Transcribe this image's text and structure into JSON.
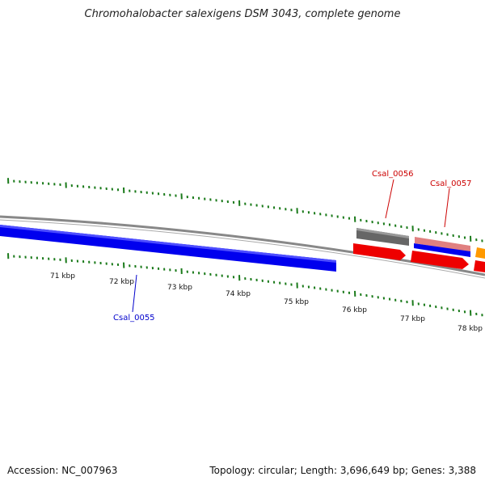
{
  "title": "Chromohalobacter salexigens DSM 3043, complete genome",
  "scale_labels": [
    "71 kbp",
    "72 kbp",
    "73 kbp",
    "74 kbp",
    "75 kbp",
    "76 kbp",
    "77 kbp",
    "78 kbp"
  ],
  "genes": [
    {
      "label": "Csal_0055",
      "color": "#0000cc"
    },
    {
      "label": "Csal_0056",
      "color": "#cc0000"
    },
    {
      "label": "Csal_0057",
      "color": "#cc0000"
    }
  ],
  "colors": {
    "tick": "#1a7a1a",
    "backbone": "#808080",
    "forward_cds": "#0000ee",
    "reverse_cds": "#ee0000",
    "gray_feature": "#666666",
    "pink_feature": "#e08080",
    "orange_feature": "#ff9900"
  },
  "footer": {
    "accession": "Accession: NC_007963",
    "summary": "Topology: circular; Length: 3,696,649 bp; Genes: 3,388"
  }
}
